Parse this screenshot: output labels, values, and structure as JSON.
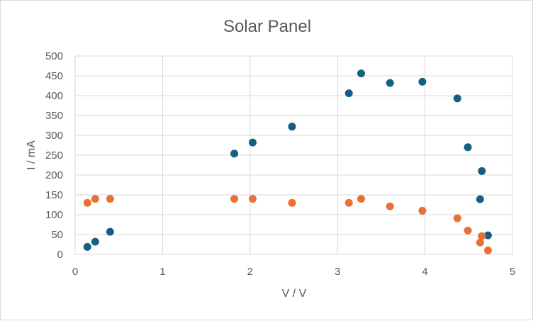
{
  "chart_data": {
    "type": "scatter",
    "title": "Solar Panel",
    "xlabel": "V / V",
    "ylabel": "I / mA",
    "xlim": [
      0,
      5
    ],
    "ylim": [
      0,
      500
    ],
    "x_ticks": [
      0,
      1,
      2,
      3,
      4,
      5
    ],
    "y_ticks": [
      0,
      50,
      100,
      150,
      200,
      250,
      300,
      350,
      400,
      450,
      500
    ],
    "grid": true,
    "legend": "none",
    "series": [
      {
        "color": "#156082",
        "points": [
          [
            0.14,
            19
          ],
          [
            0.23,
            32
          ],
          [
            0.4,
            57
          ],
          [
            1.82,
            254
          ],
          [
            2.03,
            282
          ],
          [
            2.48,
            322
          ],
          [
            3.13,
            406
          ],
          [
            3.27,
            456
          ],
          [
            3.6,
            432
          ],
          [
            3.97,
            435
          ],
          [
            4.37,
            393
          ],
          [
            4.49,
            270
          ],
          [
            4.65,
            210
          ],
          [
            4.63,
            139
          ],
          [
            4.72,
            48
          ]
        ]
      },
      {
        "color": "#E97132",
        "points": [
          [
            0.14,
            130
          ],
          [
            0.23,
            140
          ],
          [
            0.4,
            140
          ],
          [
            1.82,
            140
          ],
          [
            2.03,
            140
          ],
          [
            2.48,
            130
          ],
          [
            3.13,
            130
          ],
          [
            3.27,
            140
          ],
          [
            3.6,
            121
          ],
          [
            3.97,
            110
          ],
          [
            4.37,
            91
          ],
          [
            4.49,
            60
          ],
          [
            4.65,
            46
          ],
          [
            4.63,
            30
          ],
          [
            4.72,
            10
          ]
        ]
      }
    ]
  }
}
